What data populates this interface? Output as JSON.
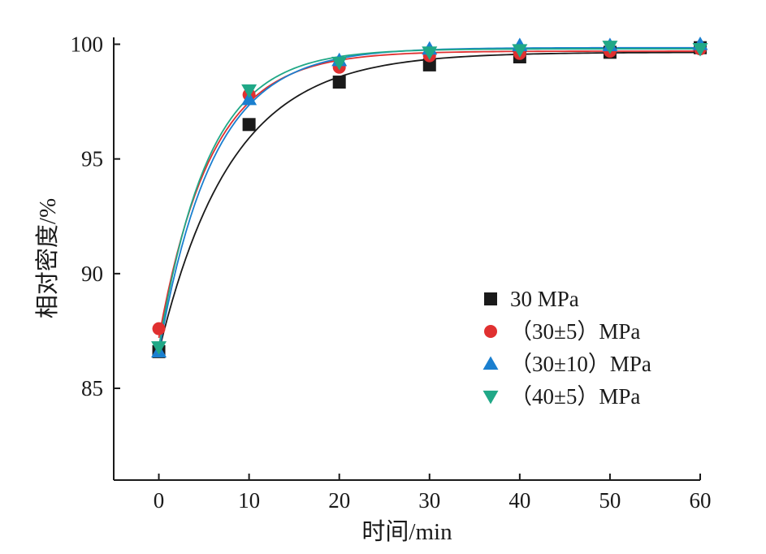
{
  "chart_data": {
    "type": "scatter",
    "title": "",
    "xlabel": "时间/min",
    "ylabel": "相对密度/%",
    "xlim": [
      -5,
      60
    ],
    "ylim": [
      81,
      100.3
    ],
    "x_ticks": [
      0,
      10,
      20,
      30,
      40,
      50,
      60
    ],
    "y_ticks": [
      85,
      90,
      95,
      100
    ],
    "x_tick_labels": [
      "0",
      "10",
      "20",
      "30",
      "40",
      "50",
      "60"
    ],
    "y_tick_labels": [
      "85",
      "90",
      "95",
      "100"
    ],
    "grid": false,
    "legend_position": "right-middle",
    "x": [
      0,
      10,
      20,
      30,
      40,
      50,
      60
    ],
    "series": [
      {
        "name": "30 MPa",
        "marker": "square",
        "color": "#1a1a1a",
        "values": [
          86.6,
          96.5,
          98.35,
          99.1,
          99.45,
          99.65,
          99.85
        ],
        "fit": {
          "final": 99.65,
          "initial": 86.6,
          "tau": 8.0
        }
      },
      {
        "name": "（30±5）MPa",
        "marker": "circle",
        "color": "#e03030",
        "values": [
          87.6,
          97.8,
          99.0,
          99.5,
          99.6,
          99.7,
          99.8
        ],
        "fit": {
          "final": 99.7,
          "initial": 87.2,
          "tau": 5.8
        }
      },
      {
        "name": "（30±10）MPa",
        "marker": "triangle-up",
        "color": "#1a7fcf",
        "values": [
          86.6,
          97.6,
          99.3,
          99.8,
          99.95,
          99.95,
          100.0
        ],
        "fit": {
          "final": 99.85,
          "initial": 86.6,
          "tau": 6.0
        }
      },
      {
        "name": "（40±5）MPa",
        "marker": "triangle-down",
        "color": "#20a887",
        "values": [
          86.8,
          98.0,
          99.2,
          99.65,
          99.75,
          99.9,
          99.8
        ],
        "fit": {
          "final": 99.8,
          "initial": 86.8,
          "tau": 5.5
        }
      }
    ]
  }
}
